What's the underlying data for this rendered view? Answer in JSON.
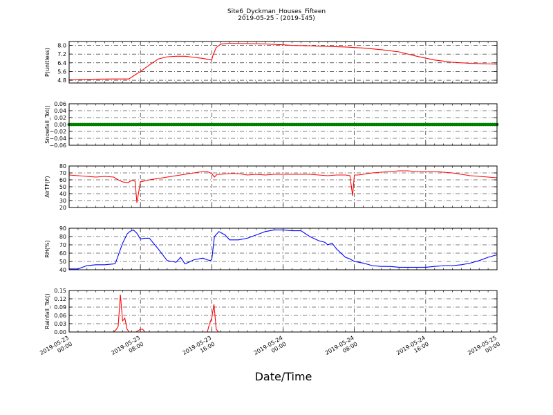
{
  "figure": {
    "title": "Site6_Dyckman_Houses_Fifteen",
    "subtitle": "2019-05-25 - (2019-145)",
    "xlabel": "Date/Time"
  },
  "chart_data": [
    {
      "type": "line",
      "ylabel": "P(unitless)",
      "ylim": [
        4.55,
        8.35
      ],
      "yticks": [
        "4.8",
        "5.6",
        "6.4",
        "7.2",
        "8.0"
      ],
      "ytick_values": [
        4.8,
        5.6,
        6.4,
        7.2,
        8.0
      ],
      "grid": true,
      "color": "#ff0000",
      "series": [
        {
          "x": [
            0,
            3,
            5,
            6.7,
            7.5,
            8,
            9,
            10,
            11,
            12,
            13,
            14,
            15,
            16,
            16.1,
            16.5,
            17,
            18,
            20,
            22,
            24,
            25,
            27,
            29,
            31,
            33,
            35,
            37,
            39,
            41,
            43,
            45,
            47,
            48
          ],
          "y": [
            4.85,
            4.9,
            4.92,
            4.92,
            5.35,
            5.6,
            6.2,
            6.75,
            6.95,
            7.0,
            7.0,
            6.9,
            6.8,
            6.65,
            7.0,
            7.8,
            8.1,
            8.2,
            8.15,
            8.12,
            8.05,
            8.0,
            7.95,
            7.9,
            7.85,
            7.75,
            7.6,
            7.4,
            7.0,
            6.65,
            6.45,
            6.35,
            6.3,
            6.28
          ]
        }
      ]
    },
    {
      "type": "scatter",
      "ylabel": "Snowfall_Tot()",
      "ylim": [
        -0.06,
        0.06
      ],
      "yticks": [
        "−0.06",
        "−0.04",
        "−0.02",
        "0.00",
        "0.02",
        "0.04",
        "0.06"
      ],
      "ytick_values": [
        -0.06,
        -0.04,
        -0.02,
        0.0,
        0.02,
        0.04,
        0.06
      ],
      "grid": true,
      "color": "#008000",
      "series": [
        {
          "x_range": [
            0,
            48
          ],
          "step": 0.25,
          "y_constant": 0.0
        }
      ]
    },
    {
      "type": "line",
      "ylabel": "AirTF(F)",
      "ylim": [
        20,
        80
      ],
      "yticks": [
        "20",
        "30",
        "40",
        "50",
        "60",
        "70",
        "80"
      ],
      "ytick_values": [
        20,
        30,
        40,
        50,
        60,
        70,
        80
      ],
      "grid": true,
      "color": "#ff0000",
      "series": [
        {
          "x": [
            0,
            1,
            2,
            3,
            4,
            5,
            5.5,
            6,
            6.6,
            7,
            7.4,
            7.6,
            8,
            9,
            10,
            11,
            12,
            13,
            14,
            15,
            15.5,
            16,
            16.3,
            16.6,
            17,
            18,
            19,
            20,
            21,
            22,
            23,
            24,
            25,
            26,
            27,
            28,
            29,
            30,
            31,
            31.5,
            31.8,
            32,
            32.4,
            33,
            34,
            35,
            36,
            37,
            38,
            39,
            40,
            41,
            42,
            43,
            44,
            45,
            46,
            47,
            48
          ],
          "y": [
            67,
            66,
            65,
            64,
            65,
            64,
            60,
            57,
            56,
            59,
            58,
            27,
            57,
            60,
            62,
            64,
            66,
            68,
            70,
            72,
            72,
            69,
            64,
            68,
            68,
            69,
            69,
            67,
            68,
            67,
            68,
            68,
            68,
            68,
            68,
            67,
            66,
            67,
            67,
            66,
            37,
            67,
            67,
            68,
            70,
            71,
            72,
            73,
            73,
            72,
            72,
            72,
            71,
            70,
            68,
            66,
            65,
            64,
            63
          ]
        }
      ]
    },
    {
      "type": "line",
      "ylabel": "RH(%)",
      "ylim": [
        40,
        90
      ],
      "yticks": [
        "40",
        "50",
        "60",
        "70",
        "80",
        "90"
      ],
      "ytick_values": [
        40,
        50,
        60,
        70,
        80,
        90
      ],
      "grid": true,
      "color": "#0000ff",
      "series": [
        {
          "x": [
            0,
            1,
            1.5,
            2,
            3,
            4,
            5,
            5.2,
            6,
            6.5,
            6.8,
            7.2,
            7.6,
            8,
            8.5,
            9,
            10,
            10.5,
            11,
            12,
            12.5,
            13,
            14,
            15,
            15.5,
            15.8,
            16,
            16.3,
            16.8,
            17.5,
            18,
            19,
            20,
            21,
            22,
            23,
            24,
            25,
            26,
            27,
            28,
            28.7,
            29,
            29.5,
            30,
            31,
            31.5,
            32,
            33,
            34,
            35,
            36,
            37,
            38,
            39,
            40,
            41,
            42,
            43,
            44,
            45,
            46,
            47,
            48
          ],
          "y": [
            41,
            41,
            43,
            45,
            46,
            46,
            47,
            48,
            72,
            83,
            86,
            88,
            84,
            77,
            78,
            78,
            65,
            58,
            51,
            49,
            55,
            47,
            52,
            54,
            52,
            51,
            52,
            80,
            86,
            82,
            76,
            76,
            78,
            82,
            86,
            88,
            88,
            87,
            87,
            80,
            75,
            73,
            70,
            72,
            65,
            55,
            53,
            50,
            48,
            45,
            44,
            44,
            43,
            43,
            43,
            43,
            44,
            45,
            45,
            46,
            48,
            51,
            55,
            58
          ]
        }
      ]
    },
    {
      "type": "line",
      "ylabel": "Rainfall_Tot()",
      "ylim": [
        0,
        0.15
      ],
      "yticks": [
        "0.00",
        "0.03",
        "0.06",
        "0.09",
        "0.12",
        "0.15"
      ],
      "ytick_values": [
        0.0,
        0.03,
        0.06,
        0.09,
        0.12,
        0.15
      ],
      "grid": true,
      "color": "#ff0000",
      "series": [
        {
          "x": [
            0,
            5,
            5.3,
            5.5,
            5.75,
            6,
            6.25,
            6.5,
            6.75,
            7,
            7.5,
            8,
            8.25,
            8.5,
            15.5,
            15.75,
            16,
            16.25,
            16.5,
            16.75,
            48
          ],
          "y": [
            0,
            0,
            0.01,
            0.02,
            0.135,
            0.04,
            0.05,
            0.01,
            0.0,
            0.0,
            0.0,
            0.01,
            0.01,
            0.0,
            0.0,
            0.03,
            0.05,
            0.1,
            0.01,
            0.0,
            0.0
          ]
        }
      ]
    }
  ],
  "x_axis": {
    "xlim": [
      0,
      48
    ],
    "tick_values": [
      0,
      8,
      16,
      24,
      32,
      40,
      48
    ],
    "tick_labels": [
      [
        "2019-05-23",
        "00:00"
      ],
      [
        "2019-05-23",
        "08:00"
      ],
      [
        "2019-05-23",
        "16:00"
      ],
      [
        "2019-05-24",
        "00:00"
      ],
      [
        "2019-05-24",
        "08:00"
      ],
      [
        "2019-05-24",
        "16:00"
      ],
      [
        "2019-05-25",
        "00:00"
      ]
    ]
  }
}
